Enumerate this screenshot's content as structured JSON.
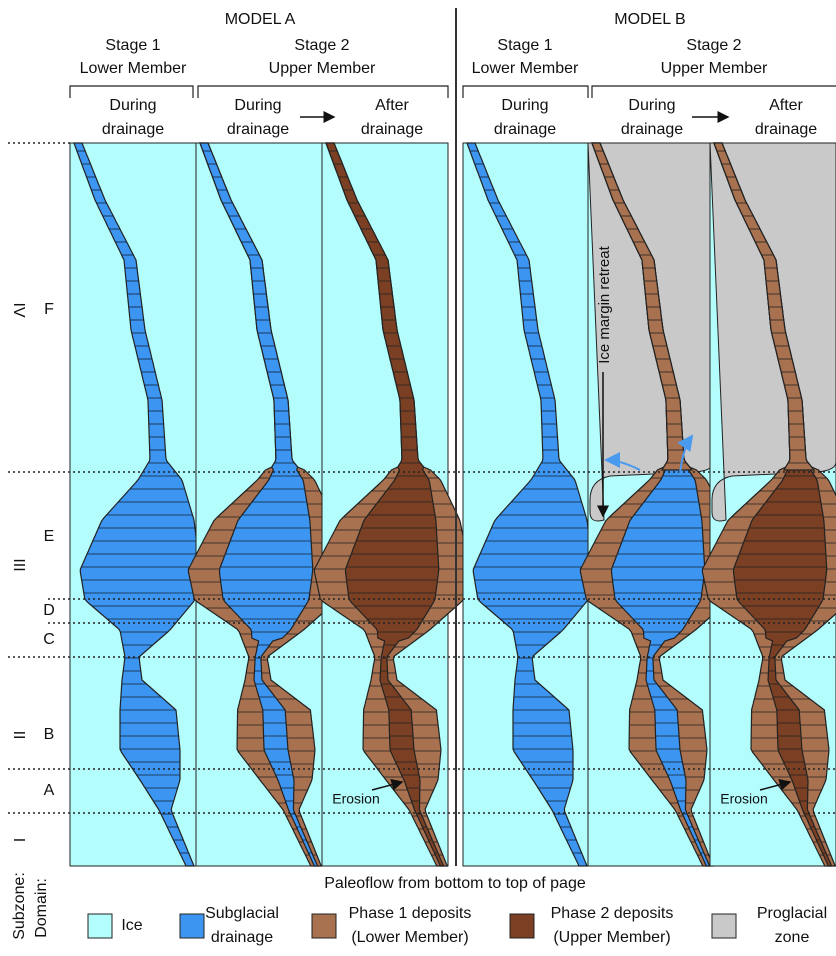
{
  "models": [
    {
      "title": "MODEL A",
      "stages": [
        {
          "name": "Stage 1",
          "member": "Lower Member"
        },
        {
          "name": "Stage 2",
          "member": "Upper Member"
        }
      ],
      "panels": [
        {
          "line1": "During",
          "line2": "drainage"
        },
        {
          "line1": "During",
          "line2": "drainage"
        },
        {
          "line1": "After",
          "line2": "drainage"
        }
      ],
      "annotations": [
        "Erosion"
      ]
    },
    {
      "title": "MODEL B",
      "stages": [
        {
          "name": "Stage 1",
          "member": "Lower Member"
        },
        {
          "name": "Stage 2",
          "member": "Upper Member"
        }
      ],
      "panels": [
        {
          "line1": "During",
          "line2": "drainage"
        },
        {
          "line1": "During",
          "line2": "drainage"
        },
        {
          "line1": "After",
          "line2": "drainage"
        }
      ],
      "annotations": [
        "Ice margin retreat",
        "Erosion"
      ]
    }
  ],
  "domains": [
    "IV",
    "III",
    "II",
    "I"
  ],
  "subzones": [
    "F",
    "E",
    "D",
    "C",
    "B",
    "A"
  ],
  "axis_labels": {
    "subzone": "Subzone:",
    "domain": "Domain:"
  },
  "note": "Paleoflow from bottom to top of page",
  "legend": [
    {
      "line1": "Ice"
    },
    {
      "line1": "Subglacial",
      "line2": "drainage"
    },
    {
      "line1": "Phase 1 deposits",
      "line2": "(Lower Member)"
    },
    {
      "line1": "Phase 2 deposits",
      "line2": "(Upper Member)"
    },
    {
      "line1": "Proglacial",
      "line2": "zone"
    }
  ]
}
